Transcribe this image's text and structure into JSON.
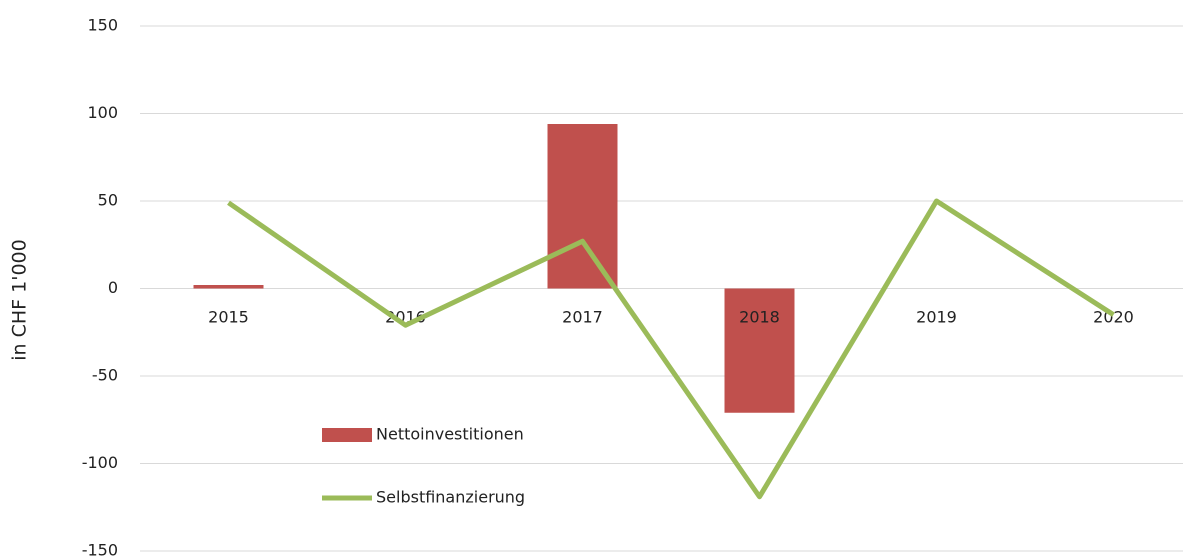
{
  "chart_data": {
    "type": "bar_line",
    "y_axis_label": "in CHF 1'000",
    "categories": [
      "2015",
      "2016",
      "2017",
      "2018",
      "2019",
      "2020"
    ],
    "series": [
      {
        "name": "Nettoinvestitionen",
        "type": "bar",
        "color": "#c0504d",
        "values": [
          2,
          0,
          94,
          -71,
          0,
          0
        ]
      },
      {
        "name": "Selbstfinanzierung",
        "type": "line",
        "color": "#9bbb59",
        "values": [
          49,
          -21,
          27,
          -119,
          50,
          -15
        ]
      }
    ],
    "ylim": [
      -150,
      150
    ],
    "yticks": [
      -150,
      -100,
      -50,
      0,
      50,
      100,
      150
    ],
    "grid": true
  }
}
